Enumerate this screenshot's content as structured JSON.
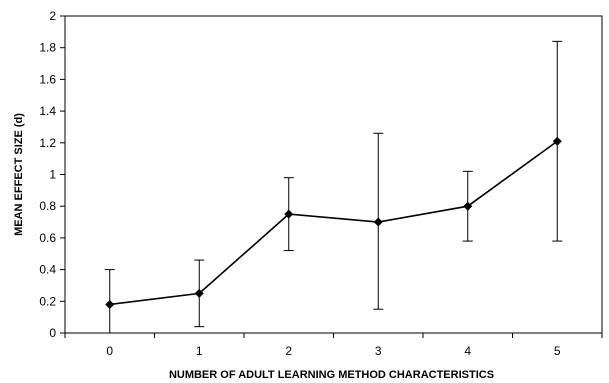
{
  "chart_data": {
    "type": "line",
    "title": "",
    "xlabel": "NUMBER OF ADULT LEARNING METHOD CHARACTERISTICS",
    "ylabel": "MEAN EFFECT SIZE (d)",
    "x": [
      0,
      1,
      2,
      3,
      4,
      5
    ],
    "xlim": [
      -0.5,
      5.5
    ],
    "ylim": [
      0,
      2
    ],
    "yticks": [
      0,
      0.2,
      0.4,
      0.6,
      0.8,
      1,
      1.2,
      1.4,
      1.6,
      1.8,
      2
    ],
    "ytick_labels": [
      "0",
      "0.2",
      "0.4",
      "0.6",
      "0.8",
      "1",
      "1.2",
      "1.4",
      "1.6",
      "1.8",
      "2"
    ],
    "xtick_labels": [
      "0",
      "1",
      "2",
      "3",
      "4",
      "5"
    ],
    "grid": false,
    "legend": "none",
    "series": [
      {
        "values": [
          0.18,
          0.25,
          0.75,
          0.7,
          0.8,
          1.21
        ],
        "error_low": [
          0.0,
          0.04,
          0.52,
          0.15,
          0.58,
          0.58
        ],
        "error_high": [
          0.4,
          0.46,
          0.98,
          1.26,
          1.02,
          1.84
        ],
        "color": "#000000",
        "marker": "diamond"
      }
    ]
  }
}
